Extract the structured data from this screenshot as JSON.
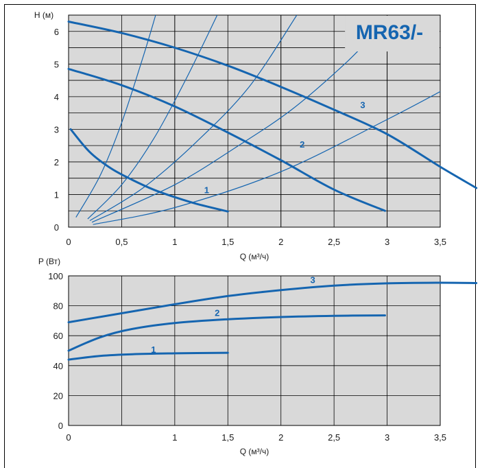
{
  "brand_color": "#1565b0",
  "plot_background": "#d9d9d9",
  "chart_data": [
    {
      "type": "line",
      "title": "MR63/-",
      "ylabel": "H (м)",
      "xlabel": "Q (м³/ч)",
      "xlim": [
        0,
        3.5
      ],
      "ylim": [
        0,
        6.5
      ],
      "x_ticks": [
        "0",
        "0,5",
        "1",
        "1,5",
        "2",
        "2,5",
        "3",
        "3,5"
      ],
      "y_ticks": [
        "0",
        "1",
        "2",
        "3",
        "4",
        "5",
        "6"
      ],
      "grid": true,
      "series": [
        {
          "name": "1",
          "points": [
            [
              0.02,
              3.0
            ],
            [
              0.2,
              2.3
            ],
            [
              0.4,
              1.8
            ],
            [
              0.6,
              1.45
            ],
            [
              0.8,
              1.15
            ],
            [
              1.0,
              0.92
            ],
            [
              1.2,
              0.72
            ],
            [
              1.5,
              0.48
            ]
          ]
        },
        {
          "name": "2",
          "points": [
            [
              0.0,
              4.85
            ],
            [
              0.5,
              4.35
            ],
            [
              1.0,
              3.7
            ],
            [
              1.5,
              2.9
            ],
            [
              2.0,
              2.05
            ],
            [
              2.5,
              1.15
            ],
            [
              2.98,
              0.5
            ]
          ]
        },
        {
          "name": "3",
          "points": [
            [
              0.0,
              6.3
            ],
            [
              0.5,
              5.95
            ],
            [
              1.0,
              5.5
            ],
            [
              1.5,
              4.95
            ],
            [
              2.0,
              4.3
            ],
            [
              2.5,
              3.6
            ],
            [
              3.0,
              2.85
            ],
            [
              3.5,
              1.85
            ],
            [
              3.84,
              1.2
            ]
          ]
        }
      ],
      "system_curves": [
        {
          "points": [
            [
              0.07,
              0.3
            ],
            [
              0.3,
              1.6
            ],
            [
              0.5,
              3.2
            ],
            [
              0.7,
              5.2
            ],
            [
              0.82,
              6.5
            ]
          ]
        },
        {
          "points": [
            [
              0.18,
              0.25
            ],
            [
              0.5,
              1.3
            ],
            [
              0.8,
              2.7
            ],
            [
              1.1,
              4.5
            ],
            [
              1.4,
              6.5
            ]
          ]
        },
        {
          "points": [
            [
              0.2,
              0.2
            ],
            [
              0.7,
              1.2
            ],
            [
              1.2,
              2.6
            ],
            [
              1.7,
              4.3
            ],
            [
              2.15,
              6.5
            ]
          ]
        },
        {
          "points": [
            [
              0.22,
              0.15
            ],
            [
              1.0,
              1.3
            ],
            [
              1.6,
              2.5
            ],
            [
              2.1,
              3.6
            ],
            [
              2.6,
              5.0
            ],
            [
              2.9,
              6.0
            ]
          ]
        },
        {
          "points": [
            [
              0.23,
              0.08
            ],
            [
              1.0,
              0.6
            ],
            [
              2.0,
              1.7
            ],
            [
              3.0,
              3.3
            ],
            [
              3.64,
              4.4
            ]
          ]
        }
      ],
      "series_labels": [
        {
          "text": "1",
          "x": 1.3,
          "y": 1.15
        },
        {
          "text": "2",
          "x": 2.2,
          "y": 2.55
        },
        {
          "text": "3",
          "x": 2.77,
          "y": 3.75
        }
      ]
    },
    {
      "type": "line",
      "ylabel": "P (Вт)",
      "xlabel": "Q (м³/ч)",
      "xlim": [
        0,
        3.5
      ],
      "ylim": [
        0,
        100
      ],
      "x_ticks": [
        "0",
        "1",
        "1,5",
        "2",
        "2,5",
        "3",
        "3,5"
      ],
      "x_tick_values": [
        0,
        1,
        1.5,
        2,
        2.5,
        3,
        3.5
      ],
      "y_ticks": [
        "0",
        "20",
        "40",
        "60",
        "80",
        "100"
      ],
      "grid": true,
      "series": [
        {
          "name": "1",
          "points": [
            [
              0.0,
              44
            ],
            [
              0.3,
              46.5
            ],
            [
              0.6,
              47.6
            ],
            [
              1.0,
              48.2
            ],
            [
              1.5,
              48.6
            ]
          ]
        },
        {
          "name": "2",
          "points": [
            [
              0.0,
              50
            ],
            [
              0.3,
              59
            ],
            [
              0.6,
              64.5
            ],
            [
              1.0,
              68.5
            ],
            [
              1.5,
              71
            ],
            [
              2.0,
              72.5
            ],
            [
              2.5,
              73.3
            ],
            [
              2.98,
              73.6
            ]
          ]
        },
        {
          "name": "3",
          "points": [
            [
              0.0,
              69
            ],
            [
              0.5,
              75
            ],
            [
              1.0,
              81
            ],
            [
              1.5,
              86.5
            ],
            [
              2.0,
              90.5
            ],
            [
              2.5,
              93.5
            ],
            [
              3.0,
              95
            ],
            [
              3.5,
              95.4
            ],
            [
              3.84,
              95.2
            ]
          ]
        }
      ],
      "series_labels": [
        {
          "text": "1",
          "x": 0.8,
          "y": 51
        },
        {
          "text": "2",
          "x": 1.4,
          "y": 75.5
        },
        {
          "text": "3",
          "x": 2.3,
          "y": 97.5
        }
      ]
    }
  ]
}
